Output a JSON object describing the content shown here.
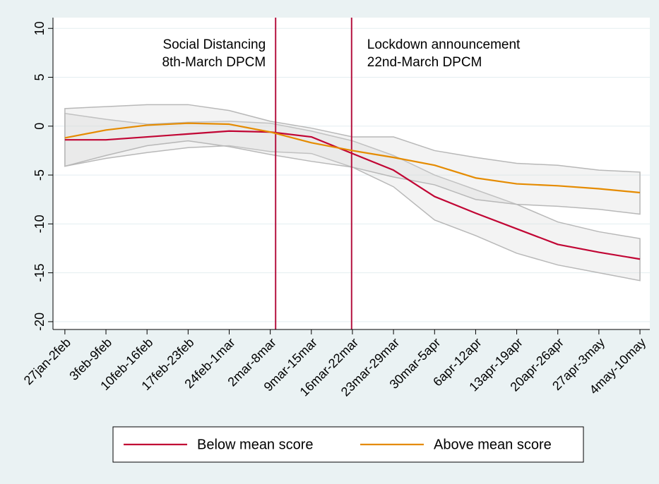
{
  "chart_data": {
    "type": "line",
    "x": [
      0,
      1,
      2,
      3,
      4,
      5,
      6,
      7,
      8,
      9,
      10,
      11,
      12,
      13,
      14
    ],
    "xlim": [
      -0.29,
      14.24
    ],
    "xticks": [
      {
        "value": 0,
        "label": "27jan-2feb"
      },
      {
        "value": 1,
        "label": "3feb-9feb"
      },
      {
        "value": 2,
        "label": "10feb-16feb"
      },
      {
        "value": 3,
        "label": "17feb-23feb"
      },
      {
        "value": 4,
        "label": "24feb-1mar"
      },
      {
        "value": 5,
        "label": "2mar-8mar"
      },
      {
        "value": 6,
        "label": "9mar-15mar"
      },
      {
        "value": 7,
        "label": "16mar-22mar"
      },
      {
        "value": 8,
        "label": "23mar-29mar"
      },
      {
        "value": 9,
        "label": "30mar-5apr"
      },
      {
        "value": 10,
        "label": "6apr-12apr"
      },
      {
        "value": 11,
        "label": "13apr-19apr"
      },
      {
        "value": 12,
        "label": "20apr-26apr"
      },
      {
        "value": 13,
        "label": "27apr-3may"
      },
      {
        "value": 14,
        "label": "4may-10may"
      }
    ],
    "ylim": [
      -20.8,
      11.1
    ],
    "yticks": [
      10,
      5,
      0,
      -5,
      -10,
      -15,
      -20
    ],
    "grid": true,
    "series": [
      {
        "name": "Below mean score",
        "color": "#c10534",
        "values": [
          -1.4,
          -1.4,
          -1.1,
          -0.8,
          -0.5,
          -0.6,
          -1.1,
          -2.8,
          -4.5,
          -7.2,
          -8.9,
          -10.5,
          -12.1,
          -12.9,
          -13.6
        ],
        "upper": [
          1.3,
          0.7,
          0.2,
          0.4,
          0.5,
          0.3,
          -0.5,
          -1.5,
          -3.0,
          -5.0,
          -6.5,
          -8.0,
          -9.8,
          -10.8,
          -11.5
        ],
        "lower": [
          -4.1,
          -3.3,
          -2.7,
          -2.2,
          -2.0,
          -2.6,
          -2.8,
          -4.2,
          -6.2,
          -9.6,
          -11.2,
          -13.0,
          -14.2,
          -15.0,
          -15.8
        ]
      },
      {
        "name": "Above mean score",
        "color": "#e58b00",
        "values": [
          -1.2,
          -0.4,
          0.1,
          0.3,
          0.2,
          -0.6,
          -1.7,
          -2.5,
          -3.2,
          -4.0,
          -5.3,
          -5.9,
          -6.1,
          -6.4,
          -6.8
        ],
        "upper": [
          1.8,
          2.0,
          2.2,
          2.2,
          1.6,
          0.5,
          -0.2,
          -1.1,
          -1.1,
          -2.5,
          -3.2,
          -3.8,
          -4.0,
          -4.5,
          -4.7
        ],
        "lower": [
          -4.1,
          -3.0,
          -2.0,
          -1.5,
          -2.1,
          -2.9,
          -3.6,
          -4.2,
          -5.2,
          -6.0,
          -7.5,
          -8.0,
          -8.2,
          -8.5,
          -9.0
        ]
      }
    ],
    "annotations": [
      {
        "x": 5.13,
        "lines": [
          "Social Distancing",
          "8th-March DPCM"
        ],
        "side": "left"
      },
      {
        "x": 6.98,
        "lines": [
          "Lockdown announcement",
          "22nd-March DPCM"
        ],
        "side": "right"
      }
    ],
    "vline_color": "#b5123f",
    "legend": "bottom"
  }
}
